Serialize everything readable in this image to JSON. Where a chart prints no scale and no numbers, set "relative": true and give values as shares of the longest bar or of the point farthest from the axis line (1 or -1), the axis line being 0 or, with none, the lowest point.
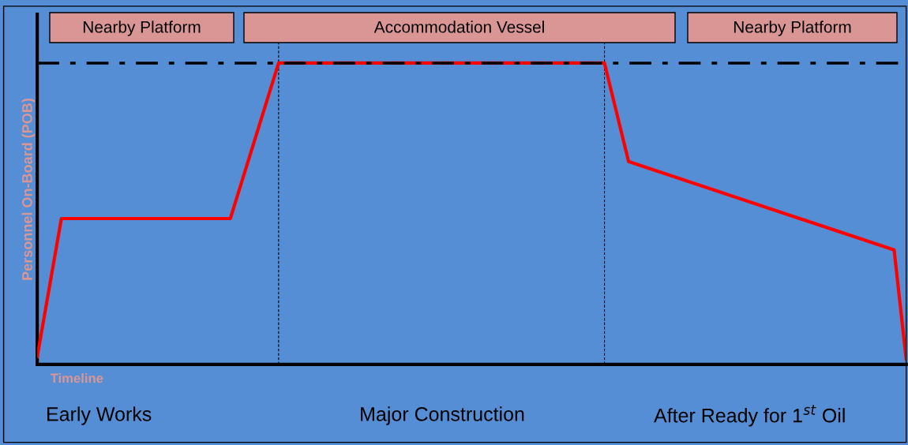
{
  "chart_data": {
    "type": "line",
    "relative": true,
    "marker": "none",
    "line_style": "solid",
    "xlabel": "Timeline",
    "ylabel": "Personnel On-Board (POB)",
    "categories": [
      null,
      null,
      null,
      null,
      null,
      null,
      null,
      null,
      null,
      null,
      null,
      null,
      null,
      null,
      null,
      null,
      null,
      null,
      null,
      null,
      null,
      null,
      null,
      null,
      null,
      null,
      null,
      null,
      null,
      null,
      null,
      null,
      null,
      null,
      null,
      null,
      null,
      null,
      null,
      null,
      null,
      null,
      null,
      null,
      null,
      null,
      null,
      null,
      null,
      null,
      null,
      null,
      null,
      null,
      null,
      null,
      null,
      null,
      null,
      null,
      null,
      null,
      null,
      null,
      null,
      null,
      null,
      null,
      null,
      null,
      null,
      null,
      null
    ],
    "series": [
      {
        "color": "#ff0000",
        "values": [
          0.026,
          null,
          0.484,
          null,
          null,
          null,
          null,
          null,
          null,
          null,
          null,
          null,
          null,
          null,
          null,
          null,
          0.484,
          null,
          null,
          null,
          1,
          null,
          null,
          null,
          null,
          null,
          null,
          null,
          null,
          null,
          null,
          null,
          null,
          null,
          null,
          null,
          null,
          null,
          null,
          null,
          null,
          null,
          null,
          null,
          null,
          null,
          null,
          1,
          null,
          0.673,
          null,
          null,
          null,
          null,
          null,
          null,
          null,
          null,
          null,
          null,
          null,
          null,
          null,
          null,
          null,
          null,
          null,
          null,
          null,
          null,
          null,
          0.38,
          0.018
        ]
      }
    ],
    "ref_lines": [
      {
        "axis": "y",
        "value": 1,
        "color": "#000000",
        "line_style": "dashdot"
      }
    ],
    "annotations": [
      "Nearby Platform",
      "Accommodation Vessel",
      "Nearby Platform",
      "Early Works",
      "Major Construction",
      "After Ready for 1$^{st}$ Oil"
    ]
  }
}
